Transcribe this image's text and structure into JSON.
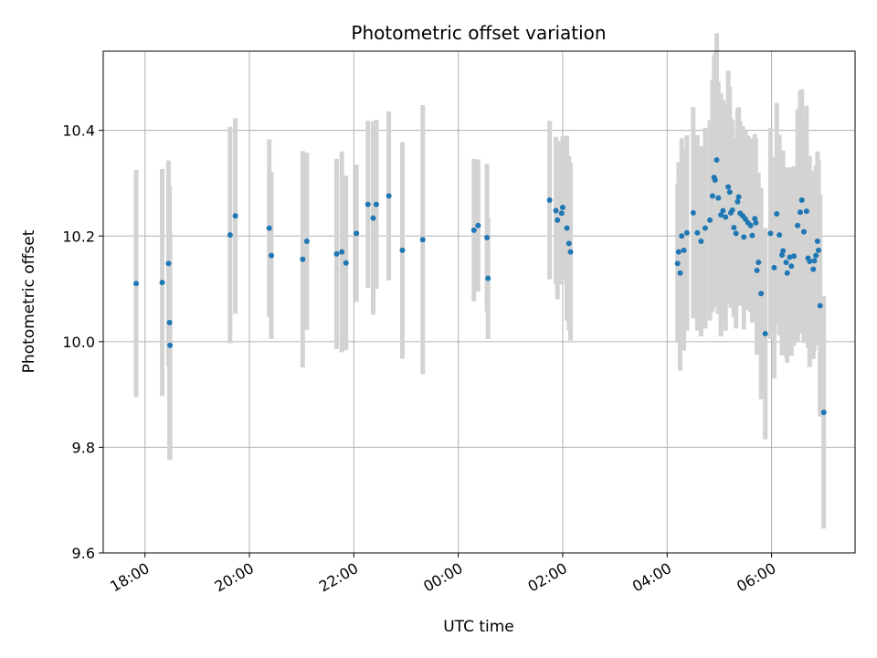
{
  "chart_data": {
    "type": "scatter",
    "title": "Photometric offset variation",
    "xlabel": "UTC time",
    "ylabel": "Photometric offset",
    "x_unit": "hours since 00:00 UTC (negative = previous day)",
    "xlim": [
      -6.8,
      7.6
    ],
    "ylim": [
      9.6,
      10.55
    ],
    "yticks": [
      9.6,
      9.8,
      10.0,
      10.2,
      10.4
    ],
    "ytick_labels": [
      "9.6",
      "9.8",
      "10.0",
      "10.2",
      "10.4"
    ],
    "xticks": [
      -6,
      -4,
      -2,
      0,
      2,
      4,
      6
    ],
    "xtick_labels": [
      "18:00",
      "20:00",
      "22:00",
      "00:00",
      "02:00",
      "04:00",
      "06:00"
    ],
    "grid": true,
    "colors": {
      "point": "#1f77b4",
      "errorbar": "#d3d3d3",
      "grid": "#b0b0b0"
    },
    "series": [
      {
        "points": [
          [
            -6.17,
            10.11,
            0.215
          ],
          [
            -5.67,
            10.112,
            0.215
          ],
          [
            -5.55,
            10.148,
            0.195
          ],
          [
            -5.53,
            10.036,
            0.26
          ],
          [
            -5.52,
            9.993,
            0.215
          ],
          [
            -4.37,
            10.202,
            0.205
          ],
          [
            -4.27,
            10.238,
            0.185
          ],
          [
            -3.62,
            10.215,
            0.168
          ],
          [
            -3.58,
            10.163,
            0.158
          ],
          [
            -2.98,
            10.156,
            0.205
          ],
          [
            -2.9,
            10.19,
            0.168
          ],
          [
            -2.33,
            10.166,
            0.18
          ],
          [
            -2.23,
            10.17,
            0.19
          ],
          [
            -2.15,
            10.149,
            0.165
          ],
          [
            -1.95,
            10.205,
            0.13
          ],
          [
            -1.73,
            10.26,
            0.158
          ],
          [
            -1.63,
            10.234,
            0.183
          ],
          [
            -1.57,
            10.26,
            0.16
          ],
          [
            -1.33,
            10.276,
            0.16
          ],
          [
            -1.07,
            10.173,
            0.205
          ],
          [
            -0.68,
            10.193,
            0.255
          ],
          [
            0.3,
            10.211,
            0.135
          ],
          [
            0.38,
            10.22,
            0.125
          ],
          [
            0.55,
            10.197,
            0.14
          ],
          [
            0.57,
            10.12,
            0.115
          ],
          [
            1.75,
            10.268,
            0.15
          ],
          [
            1.87,
            10.248,
            0.14
          ],
          [
            1.9,
            10.23,
            0.15
          ],
          [
            1.98,
            10.243,
            0.135
          ],
          [
            2.0,
            10.254,
            0.135
          ],
          [
            2.08,
            10.215,
            0.175
          ],
          [
            2.12,
            10.186,
            0.165
          ],
          [
            2.15,
            10.17,
            0.168
          ],
          [
            4.2,
            10.148,
            0.15
          ],
          [
            4.22,
            10.17,
            0.17
          ],
          [
            4.25,
            10.13,
            0.185
          ],
          [
            4.28,
            10.2,
            0.185
          ],
          [
            4.32,
            10.173,
            0.19
          ],
          [
            4.38,
            10.206,
            0.185
          ],
          [
            4.5,
            10.244,
            0.2
          ],
          [
            4.58,
            10.206,
            0.185
          ],
          [
            4.65,
            10.19,
            0.18
          ],
          [
            4.73,
            10.215,
            0.19
          ],
          [
            4.82,
            10.23,
            0.19
          ],
          [
            4.87,
            10.276,
            0.22
          ],
          [
            4.9,
            10.311,
            0.23
          ],
          [
            4.92,
            10.306,
            0.24
          ],
          [
            4.95,
            10.344,
            0.24
          ],
          [
            4.98,
            10.272,
            0.22
          ],
          [
            5.03,
            10.24,
            0.23
          ],
          [
            5.07,
            10.248,
            0.21
          ],
          [
            5.12,
            10.236,
            0.215
          ],
          [
            5.17,
            10.293,
            0.22
          ],
          [
            5.2,
            10.283,
            0.2
          ],
          [
            5.22,
            10.244,
            0.18
          ],
          [
            5.25,
            10.249,
            0.17
          ],
          [
            5.28,
            10.216,
            0.17
          ],
          [
            5.32,
            10.205,
            0.18
          ],
          [
            5.35,
            10.265,
            0.175
          ],
          [
            5.37,
            10.274,
            0.17
          ],
          [
            5.4,
            10.243,
            0.175
          ],
          [
            5.45,
            10.238,
            0.17
          ],
          [
            5.47,
            10.198,
            0.175
          ],
          [
            5.5,
            10.232,
            0.17
          ],
          [
            5.55,
            10.225,
            0.165
          ],
          [
            5.6,
            10.22,
            0.165
          ],
          [
            5.63,
            10.201,
            0.165
          ],
          [
            5.68,
            10.233,
            0.16
          ],
          [
            5.7,
            10.225,
            0.16
          ],
          [
            5.72,
            10.135,
            0.16
          ],
          [
            5.75,
            10.15,
            0.17
          ],
          [
            5.8,
            10.091,
            0.2
          ],
          [
            5.88,
            10.015,
            0.2
          ],
          [
            5.98,
            10.205,
            0.2
          ],
          [
            6.05,
            10.14,
            0.21
          ],
          [
            6.1,
            10.242,
            0.21
          ],
          [
            6.15,
            10.202,
            0.19
          ],
          [
            6.2,
            10.164,
            0.19
          ],
          [
            6.22,
            10.172,
            0.19
          ],
          [
            6.28,
            10.15,
            0.18
          ],
          [
            6.3,
            10.13,
            0.17
          ],
          [
            6.35,
            10.16,
            0.17
          ],
          [
            6.38,
            10.143,
            0.17
          ],
          [
            6.43,
            10.162,
            0.17
          ],
          [
            6.5,
            10.22,
            0.22
          ],
          [
            6.55,
            10.245,
            0.23
          ],
          [
            6.58,
            10.268,
            0.21
          ],
          [
            6.62,
            10.208,
            0.21
          ],
          [
            6.67,
            10.247,
            0.2
          ],
          [
            6.7,
            10.158,
            0.17
          ],
          [
            6.73,
            10.152,
            0.2
          ],
          [
            6.8,
            10.137,
            0.17
          ],
          [
            6.82,
            10.153,
            0.17
          ],
          [
            6.85,
            10.163,
            0.17
          ],
          [
            6.88,
            10.19,
            0.17
          ],
          [
            6.9,
            10.173,
            0.17
          ],
          [
            6.93,
            10.068,
            0.21
          ],
          [
            7.0,
            9.866,
            0.22
          ]
        ]
      }
    ]
  }
}
